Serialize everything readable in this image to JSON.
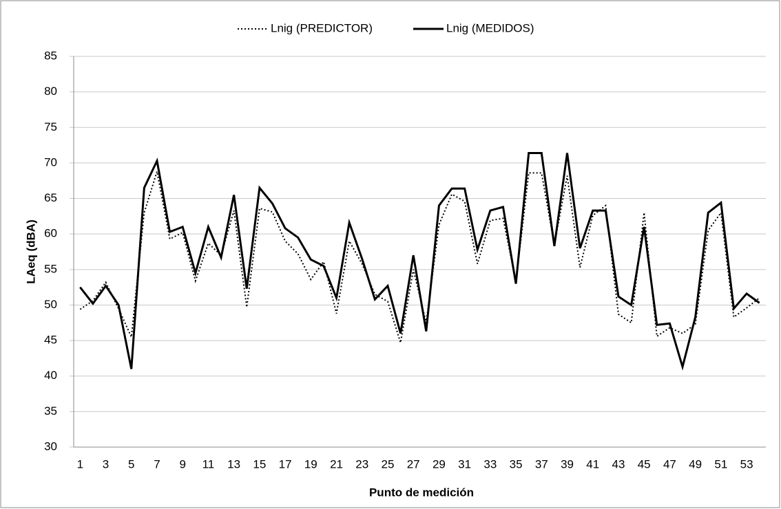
{
  "chart_data": {
    "type": "line",
    "xlabel": "Punto de medición",
    "ylabel": "LAeq (dBA)",
    "categories": [
      "1",
      null,
      "3",
      null,
      "5",
      null,
      "7",
      null,
      "9",
      null,
      "11",
      null,
      "13",
      null,
      "15",
      null,
      "17",
      null,
      "19",
      null,
      "21",
      null,
      "23",
      null,
      "25",
      null,
      "27",
      null,
      "29",
      null,
      "31",
      null,
      "33",
      null,
      "35",
      null,
      "37",
      null,
      "39",
      null,
      "41",
      null,
      "43",
      null,
      "45",
      null,
      "47",
      null,
      "49",
      null,
      "51",
      null,
      "53",
      null
    ],
    "series": [
      {
        "name": "Lnig (PREDICTOR)",
        "color": "#000000",
        "style": "dotted",
        "values": [
          49.4,
          50.6,
          53.2,
          49.5,
          45.5,
          63,
          68.8,
          59.3,
          60.2,
          53.4,
          58.7,
          57,
          63.3,
          49.7,
          63.6,
          63.1,
          59,
          57.2,
          53.6,
          56.1,
          48.8,
          59,
          55.8,
          51.5,
          50.5,
          44.7,
          55,
          47.5,
          61.3,
          65.6,
          64.6,
          55.8,
          61.9,
          62.2,
          53.3,
          68.6,
          68.6,
          58.5,
          68.2,
          55.3,
          62.6,
          64,
          48.7,
          47.5,
          63,
          45.6,
          46.8,
          46,
          47.3,
          60.5,
          63,
          48.3,
          49.6,
          51
        ]
      },
      {
        "name": "Lnig (MEDIDOS)",
        "color": "#000000",
        "style": "solid",
        "values": [
          52.5,
          50.2,
          52.7,
          50,
          41,
          66.5,
          70.3,
          60.3,
          61,
          54.5,
          61,
          56.7,
          65.5,
          52.3,
          66.5,
          64.3,
          60.8,
          59.5,
          56.4,
          55.5,
          51,
          61.6,
          56.5,
          50.8,
          52.7,
          46,
          57,
          46.3,
          64,
          66.4,
          66.4,
          57.8,
          63.3,
          63.8,
          53,
          71.4,
          71.4,
          58.3,
          71.4,
          58,
          63.3,
          63.3,
          51.2,
          50,
          61,
          47.2,
          47.4,
          41.3,
          48.3,
          63,
          64.4,
          49.5,
          51.6,
          50.3
        ]
      }
    ],
    "ylim": [
      30,
      85
    ],
    "yticks": [
      30,
      35,
      40,
      45,
      50,
      55,
      60,
      65,
      70,
      75,
      80,
      85
    ],
    "grid": true,
    "legend": "top"
  }
}
